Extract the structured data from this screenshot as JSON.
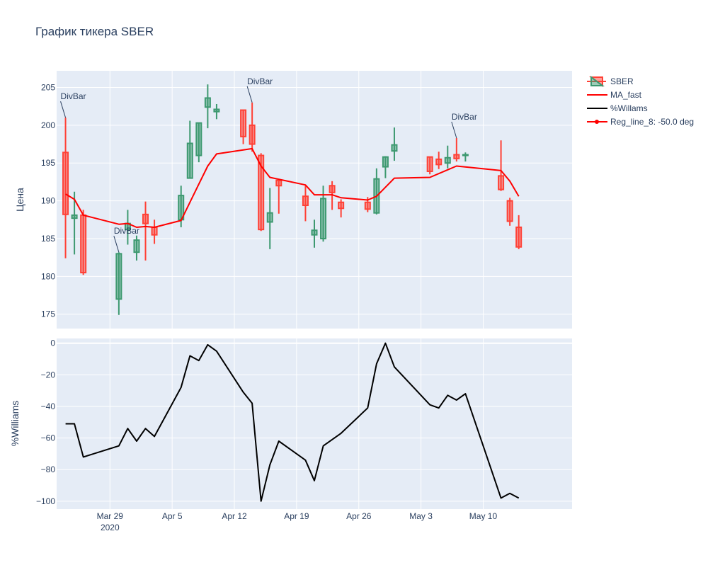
{
  "title": "График тикера SBER",
  "colors": {
    "plot_bg": "#e5ecf6",
    "grid": "#ffffff",
    "text": "#2a3f5f",
    "up": "#3d9970",
    "down": "#ff4136",
    "ma": "#ff0000",
    "williams": "#000000"
  },
  "legend": {
    "placement": "right",
    "items": [
      {
        "label": "SBER",
        "icon": "candlestick-icon"
      },
      {
        "label": "MA_fast",
        "icon": "red-line-icon"
      },
      {
        "label": "%Willams",
        "icon": "black-line-icon"
      },
      {
        "label": "Reg_line_8: -50.0 deg",
        "icon": "red-line-marker-icon"
      }
    ]
  },
  "chart_data": [
    {
      "type": "candlestick",
      "ylabel": "Цена",
      "ylim": [
        173.1,
        207.2
      ],
      "yticks": [
        175,
        180,
        185,
        190,
        195,
        200,
        205
      ],
      "xlim": [
        "2020-03-23",
        "2020-05-20"
      ],
      "xticks": [
        {
          "date": "2020-03-29",
          "label": "Mar 29",
          "sublabel": "2020"
        },
        {
          "date": "2020-04-05",
          "label": "Apr 5",
          "sublabel": ""
        },
        {
          "date": "2020-04-12",
          "label": "Apr 12",
          "sublabel": ""
        },
        {
          "date": "2020-04-19",
          "label": "Apr 19",
          "sublabel": ""
        },
        {
          "date": "2020-04-26",
          "label": "Apr 26",
          "sublabel": ""
        },
        {
          "date": "2020-05-03",
          "label": "May 3",
          "sublabel": ""
        },
        {
          "date": "2020-05-10",
          "label": "May 10",
          "sublabel": ""
        }
      ],
      "grid": true,
      "series": [
        {
          "name": "SBER",
          "candles": [
            {
              "date": "2020-03-24",
              "open": 196.4,
              "high": 201.0,
              "low": 182.4,
              "close": 188.2
            },
            {
              "date": "2020-03-25",
              "open": 187.7,
              "high": 191.2,
              "low": 182.9,
              "close": 188.1
            },
            {
              "date": "2020-03-26",
              "open": 188.1,
              "high": 188.8,
              "low": 180.2,
              "close": 180.5
            },
            {
              "date": "2020-03-30",
              "open": 177.0,
              "high": 183.2,
              "low": 174.9,
              "close": 183.0
            },
            {
              "date": "2020-03-31",
              "open": 186.2,
              "high": 188.8,
              "low": 184.2,
              "close": 187.0
            },
            {
              "date": "2020-04-01",
              "open": 183.2,
              "high": 185.4,
              "low": 182.1,
              "close": 184.8
            },
            {
              "date": "2020-04-02",
              "open": 188.2,
              "high": 189.9,
              "low": 182.1,
              "close": 187.0
            },
            {
              "date": "2020-04-03",
              "open": 186.5,
              "high": 187.5,
              "low": 184.3,
              "close": 185.5
            },
            {
              "date": "2020-04-06",
              "open": 187.5,
              "high": 192.0,
              "low": 186.5,
              "close": 190.7
            },
            {
              "date": "2020-04-07",
              "open": 193.0,
              "high": 200.6,
              "low": 193.0,
              "close": 197.6
            },
            {
              "date": "2020-04-08",
              "open": 196.0,
              "high": 200.3,
              "low": 195.1,
              "close": 200.3
            },
            {
              "date": "2020-04-09",
              "open": 202.4,
              "high": 205.4,
              "low": 199.6,
              "close": 203.6
            },
            {
              "date": "2020-04-10",
              "open": 201.8,
              "high": 202.8,
              "low": 200.8,
              "close": 202.1
            },
            {
              "date": "2020-04-13",
              "open": 202.0,
              "high": 202.0,
              "low": 197.5,
              "close": 198.5
            },
            {
              "date": "2020-04-14",
              "open": 200.0,
              "high": 203.0,
              "low": 196.5,
              "close": 197.5
            },
            {
              "date": "2020-04-15",
              "open": 196.0,
              "high": 196.3,
              "low": 186.0,
              "close": 186.2
            },
            {
              "date": "2020-04-16",
              "open": 187.2,
              "high": 191.7,
              "low": 183.6,
              "close": 188.4
            },
            {
              "date": "2020-04-17",
              "open": 192.7,
              "high": 192.9,
              "low": 188.3,
              "close": 192.0
            },
            {
              "date": "2020-04-20",
              "open": 190.6,
              "high": 192.0,
              "low": 187.3,
              "close": 189.4
            },
            {
              "date": "2020-04-21",
              "open": 185.5,
              "high": 187.5,
              "low": 183.8,
              "close": 186.1
            },
            {
              "date": "2020-04-22",
              "open": 185.0,
              "high": 192.0,
              "low": 184.6,
              "close": 190.3
            },
            {
              "date": "2020-04-23",
              "open": 192.0,
              "high": 192.6,
              "low": 188.8,
              "close": 191.1
            },
            {
              "date": "2020-04-24",
              "open": 189.8,
              "high": 190.2,
              "low": 187.8,
              "close": 189.0
            },
            {
              "date": "2020-04-27",
              "open": 189.8,
              "high": 190.5,
              "low": 188.5,
              "close": 188.9
            },
            {
              "date": "2020-04-28",
              "open": 188.4,
              "high": 194.3,
              "low": 188.2,
              "close": 192.9
            },
            {
              "date": "2020-04-29",
              "open": 194.5,
              "high": 195.9,
              "low": 193.0,
              "close": 195.8
            },
            {
              "date": "2020-04-30",
              "open": 196.6,
              "high": 199.7,
              "low": 195.3,
              "close": 197.4
            },
            {
              "date": "2020-05-04",
              "open": 195.8,
              "high": 195.8,
              "low": 193.5,
              "close": 193.9
            },
            {
              "date": "2020-05-05",
              "open": 195.5,
              "high": 196.5,
              "low": 194.2,
              "close": 194.8
            },
            {
              "date": "2020-05-06",
              "open": 195.0,
              "high": 197.3,
              "low": 194.3,
              "close": 195.7
            },
            {
              "date": "2020-05-07",
              "open": 196.1,
              "high": 198.3,
              "low": 195.2,
              "close": 195.6
            },
            {
              "date": "2020-05-08",
              "open": 196.0,
              "high": 196.4,
              "low": 195.2,
              "close": 196.1
            },
            {
              "date": "2020-05-12",
              "open": 193.3,
              "high": 198.0,
              "low": 191.3,
              "close": 191.5
            },
            {
              "date": "2020-05-13",
              "open": 190.0,
              "high": 190.4,
              "low": 186.7,
              "close": 187.3
            },
            {
              "date": "2020-05-14",
              "open": 186.5,
              "high": 188.1,
              "low": 183.6,
              "close": 183.9
            }
          ]
        },
        {
          "name": "MA_fast",
          "points": [
            [
              "2020-03-24",
              190.9
            ],
            [
              "2020-03-25",
              190.2
            ],
            [
              "2020-03-26",
              188.1
            ],
            [
              "2020-03-30",
              186.9
            ],
            [
              "2020-03-31",
              187.0
            ],
            [
              "2020-04-01",
              186.5
            ],
            [
              "2020-04-02",
              186.6
            ],
            [
              "2020-04-03",
              186.5
            ],
            [
              "2020-04-06",
              187.4
            ],
            [
              "2020-04-08",
              192.2
            ],
            [
              "2020-04-09",
              194.6
            ],
            [
              "2020-04-10",
              196.2
            ],
            [
              "2020-04-14",
              196.9
            ],
            [
              "2020-04-15",
              194.6
            ],
            [
              "2020-04-16",
              193.1
            ],
            [
              "2020-04-20",
              192.1
            ],
            [
              "2020-04-21",
              190.8
            ],
            [
              "2020-04-23",
              190.8
            ],
            [
              "2020-04-24",
              190.4
            ],
            [
              "2020-04-27",
              190.1
            ],
            [
              "2020-04-28",
              190.6
            ],
            [
              "2020-04-30",
              193.0
            ],
            [
              "2020-05-04",
              193.1
            ],
            [
              "2020-05-06",
              194.1
            ],
            [
              "2020-05-07",
              194.6
            ],
            [
              "2020-05-12",
              194.0
            ],
            [
              "2020-05-13",
              192.6
            ],
            [
              "2020-05-14",
              190.6
            ]
          ]
        }
      ],
      "annotations": [
        {
          "text": "DivBar",
          "date": "2020-03-24",
          "y": 201.0
        },
        {
          "text": "DivBar",
          "date": "2020-03-30",
          "y": 183.2
        },
        {
          "text": "DivBar",
          "date": "2020-04-14",
          "y": 203.0
        },
        {
          "text": "DivBar",
          "date": "2020-05-07",
          "y": 198.3
        }
      ]
    },
    {
      "type": "line",
      "ylabel": "%Williams",
      "ylim": [
        -105,
        3
      ],
      "yticks": [
        0,
        -20,
        -40,
        -60,
        -80,
        -100
      ],
      "ytick_labels": [
        "0",
        "−20",
        "−40",
        "−60",
        "−80",
        "−100"
      ],
      "xlim": [
        "2020-03-23",
        "2020-05-20"
      ],
      "grid": true,
      "series": [
        {
          "name": "%Willams",
          "points": [
            [
              "2020-03-24",
              -51
            ],
            [
              "2020-03-25",
              -51
            ],
            [
              "2020-03-26",
              -72
            ],
            [
              "2020-03-30",
              -65
            ],
            [
              "2020-03-31",
              -54
            ],
            [
              "2020-04-01",
              -62
            ],
            [
              "2020-04-02",
              -54
            ],
            [
              "2020-04-03",
              -59
            ],
            [
              "2020-04-06",
              -28
            ],
            [
              "2020-04-07",
              -8
            ],
            [
              "2020-04-08",
              -11
            ],
            [
              "2020-04-09",
              -1
            ],
            [
              "2020-04-10",
              -5
            ],
            [
              "2020-04-13",
              -31
            ],
            [
              "2020-04-14",
              -38
            ],
            [
              "2020-04-15",
              -100
            ],
            [
              "2020-04-16",
              -77
            ],
            [
              "2020-04-17",
              -62
            ],
            [
              "2020-04-20",
              -74
            ],
            [
              "2020-04-21",
              -87
            ],
            [
              "2020-04-22",
              -65
            ],
            [
              "2020-04-24",
              -57
            ],
            [
              "2020-04-27",
              -41
            ],
            [
              "2020-04-28",
              -13
            ],
            [
              "2020-04-29",
              0
            ],
            [
              "2020-04-30",
              -15
            ],
            [
              "2020-05-04",
              -39
            ],
            [
              "2020-05-05",
              -41
            ],
            [
              "2020-05-06",
              -33
            ],
            [
              "2020-05-07",
              -36
            ],
            [
              "2020-05-08",
              -32
            ],
            [
              "2020-05-12",
              -98
            ],
            [
              "2020-05-13",
              -95
            ],
            [
              "2020-05-14",
              -98
            ]
          ]
        }
      ]
    }
  ]
}
